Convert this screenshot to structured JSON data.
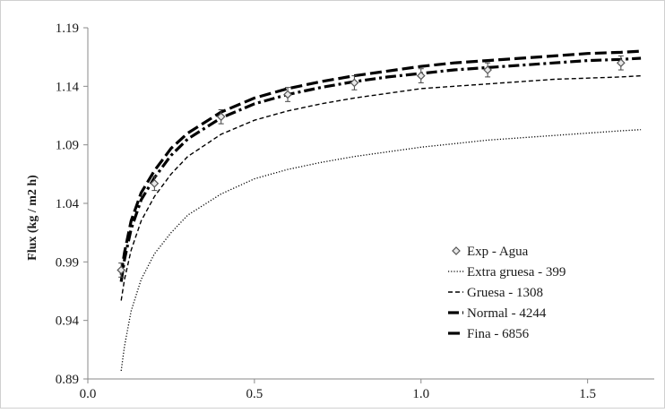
{
  "chart_data": {
    "type": "line",
    "title": "",
    "xlabel": "",
    "ylabel": "Flux (kg / m2 h)",
    "xlim": [
      0.0,
      1.7
    ],
    "ylim": [
      0.89,
      1.19
    ],
    "x_ticks": [
      "0.0",
      "0.5",
      "1.0",
      "1.5"
    ],
    "y_ticks": [
      "0.89",
      "0.94",
      "0.99",
      "1.04",
      "1.09",
      "1.14",
      "1.19"
    ],
    "grid": false,
    "legend_position": "bottom-right",
    "points": {
      "name": "Exp - Agua",
      "marker": "diamond",
      "x": [
        0.1,
        0.2,
        0.4,
        0.6,
        0.8,
        1.0,
        1.2,
        1.6
      ],
      "y": [
        0.983,
        1.057,
        1.114,
        1.133,
        1.143,
        1.149,
        1.154,
        1.16
      ],
      "error": 0.006
    },
    "series": [
      {
        "name": "Extra gruesa - 399",
        "style": "dotted",
        "x": [
          0.1,
          0.11,
          0.13,
          0.16,
          0.2,
          0.25,
          0.3,
          0.4,
          0.5,
          0.6,
          0.7,
          0.8,
          0.9,
          1.0,
          1.1,
          1.2,
          1.3,
          1.4,
          1.5,
          1.6,
          1.66
        ],
        "y": [
          0.897,
          0.918,
          0.948,
          0.975,
          0.997,
          1.015,
          1.03,
          1.048,
          1.061,
          1.069,
          1.075,
          1.08,
          1.084,
          1.088,
          1.091,
          1.094,
          1.096,
          1.098,
          1.1,
          1.102,
          1.103
        ]
      },
      {
        "name": "Gruesa - 1308",
        "style": "dashed",
        "x": [
          0.1,
          0.11,
          0.13,
          0.16,
          0.2,
          0.25,
          0.3,
          0.4,
          0.5,
          0.6,
          0.7,
          0.8,
          0.9,
          1.0,
          1.1,
          1.2,
          1.3,
          1.4,
          1.5,
          1.6,
          1.66
        ],
        "y": [
          0.957,
          0.975,
          1.0,
          1.025,
          1.046,
          1.065,
          1.08,
          1.099,
          1.111,
          1.119,
          1.125,
          1.13,
          1.134,
          1.138,
          1.14,
          1.142,
          1.144,
          1.146,
          1.147,
          1.148,
          1.149
        ]
      },
      {
        "name": "Normal - 4244",
        "style": "dash-dot",
        "x": [
          0.1,
          0.11,
          0.13,
          0.16,
          0.2,
          0.25,
          0.3,
          0.4,
          0.5,
          0.6,
          0.7,
          0.8,
          0.9,
          1.0,
          1.1,
          1.2,
          1.3,
          1.4,
          1.5,
          1.6,
          1.66
        ],
        "y": [
          0.973,
          0.992,
          1.018,
          1.043,
          1.062,
          1.081,
          1.095,
          1.113,
          1.125,
          1.133,
          1.139,
          1.144,
          1.148,
          1.151,
          1.154,
          1.156,
          1.158,
          1.16,
          1.162,
          1.163,
          1.164
        ]
      },
      {
        "name": "Fina - 6856",
        "style": "long-dash",
        "x": [
          0.1,
          0.11,
          0.13,
          0.16,
          0.2,
          0.25,
          0.3,
          0.4,
          0.5,
          0.6,
          0.7,
          0.8,
          0.9,
          1.0,
          1.1,
          1.2,
          1.3,
          1.4,
          1.5,
          1.6,
          1.66
        ],
        "y": [
          0.979,
          0.998,
          1.025,
          1.049,
          1.068,
          1.087,
          1.1,
          1.118,
          1.13,
          1.138,
          1.144,
          1.149,
          1.153,
          1.157,
          1.16,
          1.162,
          1.164,
          1.166,
          1.168,
          1.169,
          1.17
        ]
      }
    ]
  }
}
